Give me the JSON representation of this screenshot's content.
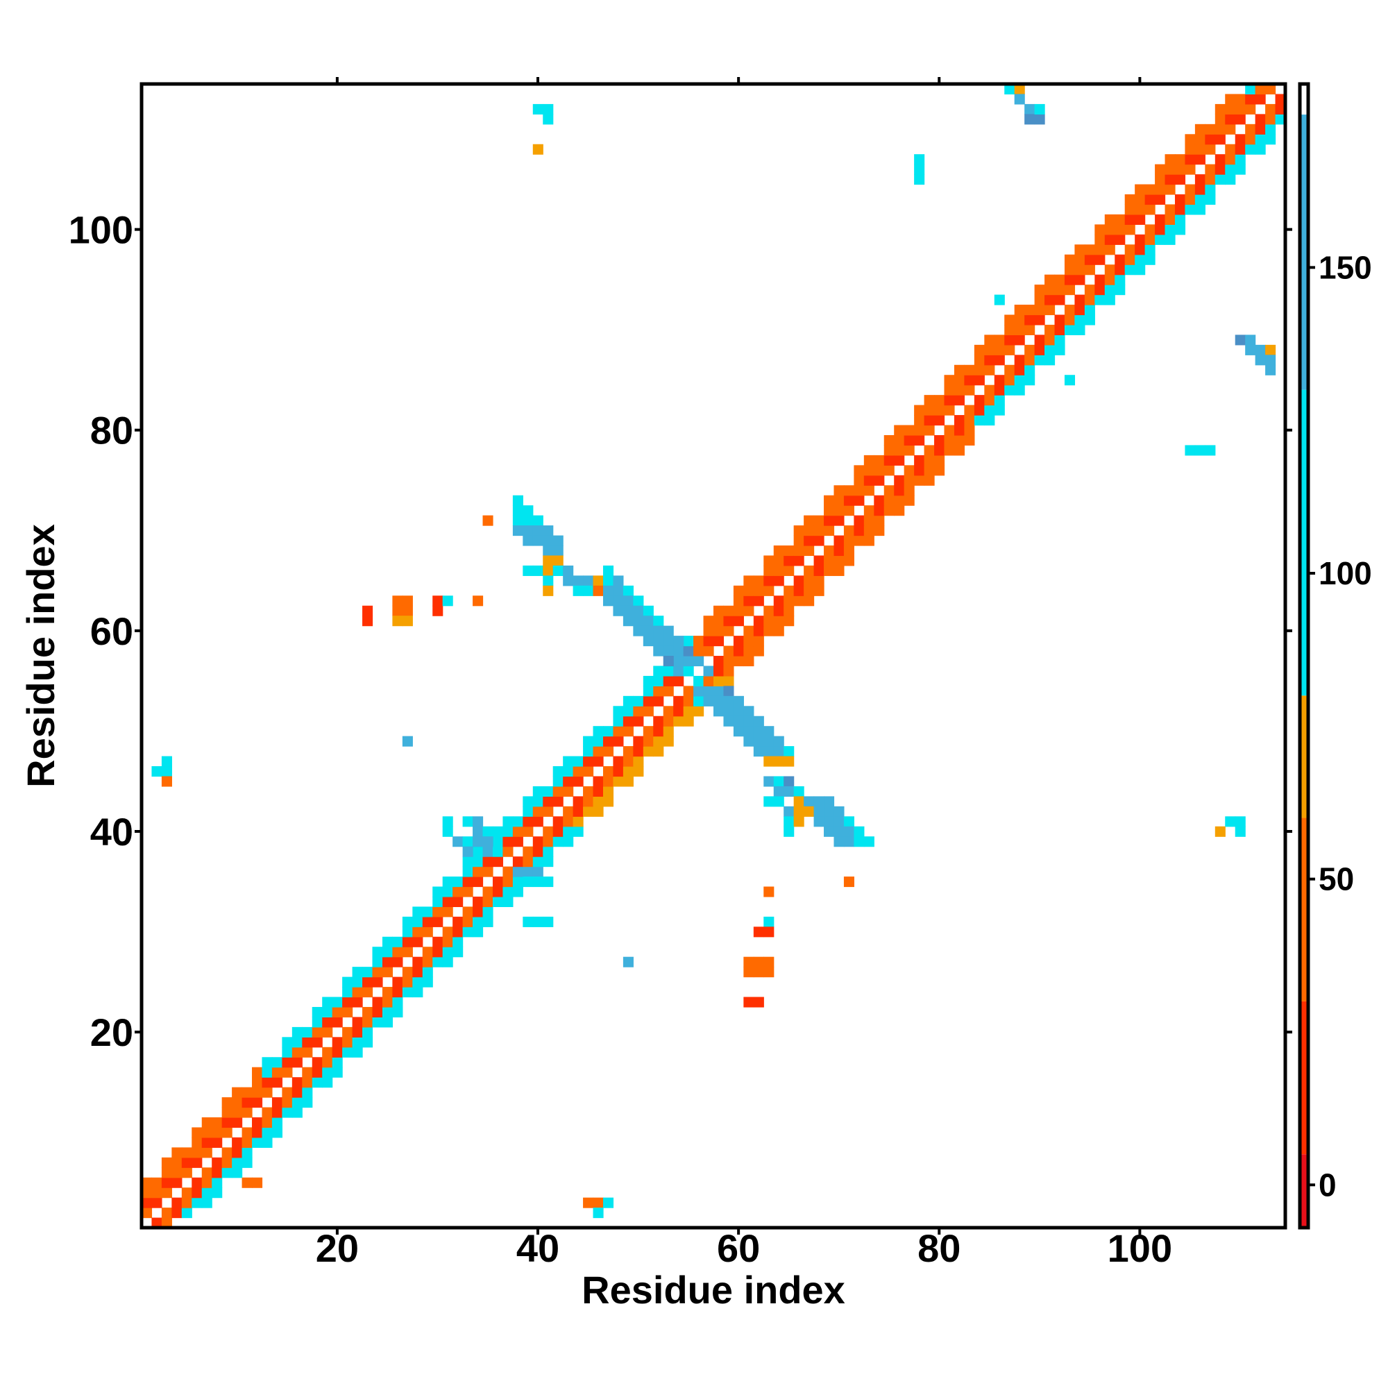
{
  "chart_data": {
    "type": "heatmap",
    "title": "",
    "xlabel": "Residue index",
    "ylabel": "Residue index",
    "xlim": [
      0.5,
      114.5
    ],
    "ylim": [
      0.5,
      114.5
    ],
    "xticks": [
      20,
      40,
      60,
      80,
      100
    ],
    "yticks": [
      20,
      40,
      60,
      80,
      100
    ],
    "grid": false,
    "colorbar": {
      "range": [
        -7,
        180
      ],
      "ticks": [
        0,
        50,
        100,
        150
      ],
      "bands": [
        {
          "from": -7,
          "to": 5,
          "color": "#e8101a"
        },
        {
          "from": 5,
          "to": 30,
          "color": "#ff3000"
        },
        {
          "from": 30,
          "to": 60,
          "color": "#ff6a00"
        },
        {
          "from": 60,
          "to": 80,
          "color": "#f5a000"
        },
        {
          "from": 80,
          "to": 130,
          "color": "#00e5f0"
        },
        {
          "from": 130,
          "to": 175,
          "color": "#3fb0dc"
        },
        {
          "from": 175,
          "to": 180,
          "color": "#ffffff"
        }
      ]
    },
    "palette": {
      "a": "#e8101a",
      "b": "#ff3000",
      "c": "#ff6a00",
      "d": "#f5a000",
      "e": "#00e5f0",
      "f": "#3fb0dc",
      "g": "#4a8fc6"
    },
    "value_key": {
      "a": 0,
      "b": 20,
      "c": 45,
      "d": 70,
      "e": 100,
      "f": 150,
      "g": 170
    },
    "diagonal_band": {
      "inner": [
        "c",
        "b"
      ],
      "outer_lower": [
        {
          "from": 2,
          "to": 12,
          "color": "e"
        },
        {
          "from": 13,
          "to": 40,
          "color": "e"
        },
        {
          "from": 41,
          "to": 55,
          "color": "d"
        },
        {
          "from": 56,
          "to": 80,
          "color": "c"
        },
        {
          "from": 81,
          "to": 110,
          "color": "e"
        },
        {
          "from": 111,
          "to": 114,
          "color": "e"
        }
      ],
      "outer_upper": [
        {
          "from": 1,
          "to": 12,
          "color": "c"
        },
        {
          "from": 13,
          "to": 40,
          "color": "e"
        },
        {
          "from": 41,
          "to": 55,
          "color": "e"
        },
        {
          "from": 56,
          "to": 80,
          "color": "c"
        },
        {
          "from": 81,
          "to": 110,
          "color": "c"
        },
        {
          "from": 111,
          "to": 114,
          "color": "e"
        }
      ]
    },
    "cells": [
      [
        40,
        112,
        "e"
      ],
      [
        41,
        112,
        "e"
      ],
      [
        41,
        111,
        "e"
      ],
      [
        40,
        108,
        "d"
      ],
      [
        87,
        114,
        "e"
      ],
      [
        88,
        114,
        "d"
      ],
      [
        88,
        113,
        "f"
      ],
      [
        89,
        112,
        "f"
      ],
      [
        89,
        111,
        "g"
      ],
      [
        90,
        111,
        "g"
      ],
      [
        90,
        112,
        "e"
      ],
      [
        78,
        107,
        "e"
      ],
      [
        78,
        106,
        "e"
      ],
      [
        78,
        105,
        "e"
      ],
      [
        86,
        93,
        "e"
      ],
      [
        110,
        89,
        "g"
      ],
      [
        111,
        89,
        "f"
      ],
      [
        111,
        88,
        "f"
      ],
      [
        112,
        88,
        "f"
      ],
      [
        113,
        88,
        "d"
      ],
      [
        112,
        87,
        "f"
      ],
      [
        113,
        87,
        "f"
      ],
      [
        113,
        86,
        "f"
      ],
      [
        93,
        85,
        "e"
      ],
      [
        105,
        78,
        "e"
      ],
      [
        106,
        78,
        "e"
      ],
      [
        107,
        78,
        "e"
      ],
      [
        108,
        40,
        "d"
      ],
      [
        109,
        41,
        "e"
      ],
      [
        110,
        41,
        "e"
      ],
      [
        110,
        40,
        "e"
      ],
      [
        3,
        47,
        "e"
      ],
      [
        2,
        46,
        "e"
      ],
      [
        3,
        46,
        "e"
      ],
      [
        3,
        45,
        "c"
      ],
      [
        27,
        49,
        "f"
      ],
      [
        23,
        62,
        "b"
      ],
      [
        23,
        61,
        "b"
      ],
      [
        26,
        63,
        "c"
      ],
      [
        27,
        63,
        "c"
      ],
      [
        26,
        62,
        "c"
      ],
      [
        27,
        62,
        "c"
      ],
      [
        26,
        61,
        "d"
      ],
      [
        27,
        61,
        "d"
      ],
      [
        30,
        63,
        "b"
      ],
      [
        30,
        62,
        "b"
      ],
      [
        31,
        63,
        "e"
      ],
      [
        34,
        63,
        "c"
      ],
      [
        35,
        71,
        "c"
      ],
      [
        38,
        73,
        "e"
      ],
      [
        38,
        72,
        "e"
      ],
      [
        39,
        72,
        "e"
      ],
      [
        38,
        71,
        "e"
      ],
      [
        39,
        71,
        "e"
      ],
      [
        40,
        71,
        "e"
      ],
      [
        38,
        70,
        "f"
      ],
      [
        39,
        70,
        "f"
      ],
      [
        40,
        70,
        "f"
      ],
      [
        41,
        70,
        "f"
      ],
      [
        39,
        69,
        "f"
      ],
      [
        40,
        69,
        "f"
      ],
      [
        41,
        69,
        "f"
      ],
      [
        42,
        69,
        "f"
      ],
      [
        41,
        68,
        "f"
      ],
      [
        42,
        68,
        "f"
      ],
      [
        41,
        67,
        "d"
      ],
      [
        42,
        67,
        "d"
      ],
      [
        39,
        66,
        "e"
      ],
      [
        40,
        66,
        "e"
      ],
      [
        41,
        66,
        "d"
      ],
      [
        42,
        66,
        "e"
      ],
      [
        43,
        66,
        "f"
      ],
      [
        41,
        65,
        "e"
      ],
      [
        43,
        65,
        "f"
      ],
      [
        44,
        65,
        "f"
      ],
      [
        45,
        65,
        "f"
      ],
      [
        41,
        64,
        "d"
      ],
      [
        44,
        64,
        "e"
      ],
      [
        45,
        64,
        "e"
      ],
      [
        47,
        66,
        "e"
      ],
      [
        46,
        65,
        "d"
      ],
      [
        47,
        65,
        "e"
      ],
      [
        48,
        65,
        "f"
      ],
      [
        46,
        64,
        "c"
      ],
      [
        47,
        64,
        "f"
      ],
      [
        48,
        64,
        "f"
      ],
      [
        49,
        64,
        "e"
      ],
      [
        47,
        63,
        "f"
      ],
      [
        48,
        63,
        "f"
      ],
      [
        49,
        63,
        "f"
      ],
      [
        50,
        63,
        "e"
      ],
      [
        48,
        62,
        "f"
      ],
      [
        49,
        62,
        "f"
      ],
      [
        50,
        62,
        "f"
      ],
      [
        51,
        62,
        "e"
      ],
      [
        49,
        61,
        "f"
      ],
      [
        50,
        61,
        "f"
      ],
      [
        51,
        61,
        "f"
      ],
      [
        52,
        61,
        "e"
      ],
      [
        50,
        60,
        "f"
      ],
      [
        51,
        60,
        "f"
      ],
      [
        52,
        60,
        "f"
      ],
      [
        53,
        60,
        "f"
      ],
      [
        51,
        59,
        "f"
      ],
      [
        52,
        59,
        "f"
      ],
      [
        53,
        59,
        "f"
      ],
      [
        54,
        59,
        "f"
      ],
      [
        52,
        58,
        "f"
      ],
      [
        53,
        58,
        "f"
      ],
      [
        54,
        58,
        "f"
      ],
      [
        55,
        58,
        "g"
      ],
      [
        53,
        57,
        "g"
      ],
      [
        54,
        57,
        "f"
      ],
      [
        55,
        57,
        "f"
      ],
      [
        56,
        57,
        "f"
      ],
      [
        54,
        56,
        "f"
      ],
      [
        55,
        56,
        "e"
      ],
      [
        56,
        56,
        "f"
      ],
      [
        57,
        56,
        "f"
      ],
      [
        55,
        55,
        "e"
      ],
      [
        56,
        55,
        "e"
      ],
      [
        56,
        54,
        "f"
      ],
      [
        57,
        54,
        "f"
      ],
      [
        58,
        54,
        "f"
      ],
      [
        59,
        54,
        "g"
      ],
      [
        56,
        53,
        "e"
      ],
      [
        57,
        53,
        "f"
      ],
      [
        58,
        53,
        "f"
      ],
      [
        59,
        53,
        "f"
      ],
      [
        60,
        53,
        "f"
      ],
      [
        58,
        52,
        "f"
      ],
      [
        59,
        52,
        "f"
      ],
      [
        60,
        52,
        "f"
      ],
      [
        61,
        52,
        "f"
      ],
      [
        59,
        51,
        "f"
      ],
      [
        60,
        51,
        "f"
      ],
      [
        61,
        51,
        "f"
      ],
      [
        62,
        51,
        "f"
      ],
      [
        60,
        50,
        "f"
      ],
      [
        61,
        50,
        "f"
      ],
      [
        62,
        50,
        "f"
      ],
      [
        63,
        50,
        "f"
      ],
      [
        61,
        49,
        "f"
      ],
      [
        62,
        49,
        "f"
      ],
      [
        63,
        49,
        "f"
      ],
      [
        64,
        49,
        "f"
      ],
      [
        62,
        48,
        "f"
      ],
      [
        63,
        48,
        "f"
      ],
      [
        64,
        48,
        "f"
      ],
      [
        65,
        48,
        "e"
      ],
      [
        63,
        47,
        "d"
      ],
      [
        64,
        47,
        "d"
      ],
      [
        65,
        47,
        "d"
      ],
      [
        63,
        45,
        "f"
      ],
      [
        64,
        45,
        "e"
      ],
      [
        65,
        45,
        "g"
      ],
      [
        64,
        44,
        "f"
      ],
      [
        65,
        44,
        "f"
      ],
      [
        66,
        44,
        "e"
      ],
      [
        63,
        43,
        "e"
      ],
      [
        64,
        43,
        "e"
      ],
      [
        66,
        43,
        "d"
      ],
      [
        67,
        43,
        "f"
      ],
      [
        68,
        43,
        "f"
      ],
      [
        69,
        43,
        "f"
      ],
      [
        65,
        42,
        "f"
      ],
      [
        66,
        42,
        "d"
      ],
      [
        67,
        42,
        "d"
      ],
      [
        68,
        42,
        "f"
      ],
      [
        69,
        42,
        "f"
      ],
      [
        70,
        42,
        "f"
      ],
      [
        65,
        41,
        "e"
      ],
      [
        66,
        41,
        "d"
      ],
      [
        68,
        41,
        "f"
      ],
      [
        69,
        41,
        "f"
      ],
      [
        70,
        41,
        "f"
      ],
      [
        71,
        41,
        "e"
      ],
      [
        65,
        40,
        "e"
      ],
      [
        69,
        40,
        "f"
      ],
      [
        70,
        40,
        "f"
      ],
      [
        71,
        40,
        "f"
      ],
      [
        72,
        40,
        "e"
      ],
      [
        70,
        39,
        "f"
      ],
      [
        71,
        39,
        "f"
      ],
      [
        72,
        39,
        "e"
      ],
      [
        73,
        39,
        "e"
      ],
      [
        31,
        41,
        "e"
      ],
      [
        33,
        41,
        "e"
      ],
      [
        34,
        41,
        "f"
      ],
      [
        31,
        40,
        "e"
      ],
      [
        34,
        40,
        "f"
      ],
      [
        35,
        40,
        "e"
      ],
      [
        32,
        39,
        "f"
      ],
      [
        33,
        39,
        "e"
      ],
      [
        34,
        39,
        "f"
      ],
      [
        35,
        39,
        "f"
      ],
      [
        33,
        38,
        "f"
      ],
      [
        34,
        38,
        "e"
      ],
      [
        35,
        38,
        "f"
      ],
      [
        36,
        38,
        "e"
      ],
      [
        38,
        36,
        "f"
      ],
      [
        39,
        36,
        "f"
      ],
      [
        40,
        36,
        "f"
      ],
      [
        39,
        35,
        "e"
      ],
      [
        40,
        35,
        "e"
      ],
      [
        41,
        35,
        "e"
      ],
      [
        39,
        31,
        "e"
      ],
      [
        40,
        31,
        "e"
      ],
      [
        41,
        31,
        "e"
      ],
      [
        63,
        34,
        "c"
      ],
      [
        71,
        35,
        "c"
      ],
      [
        63,
        31,
        "e"
      ],
      [
        62,
        30,
        "b"
      ],
      [
        63,
        30,
        "b"
      ],
      [
        61,
        27,
        "c"
      ],
      [
        62,
        27,
        "c"
      ],
      [
        63,
        27,
        "c"
      ],
      [
        61,
        26,
        "c"
      ],
      [
        62,
        26,
        "c"
      ],
      [
        63,
        26,
        "c"
      ],
      [
        61,
        23,
        "b"
      ],
      [
        62,
        23,
        "b"
      ],
      [
        49,
        27,
        "f"
      ],
      [
        45,
        3,
        "c"
      ],
      [
        46,
        3,
        "c"
      ],
      [
        47,
        3,
        "e"
      ],
      [
        46,
        2,
        "e"
      ],
      [
        11,
        5,
        "c"
      ],
      [
        12,
        5,
        "c"
      ]
    ]
  }
}
